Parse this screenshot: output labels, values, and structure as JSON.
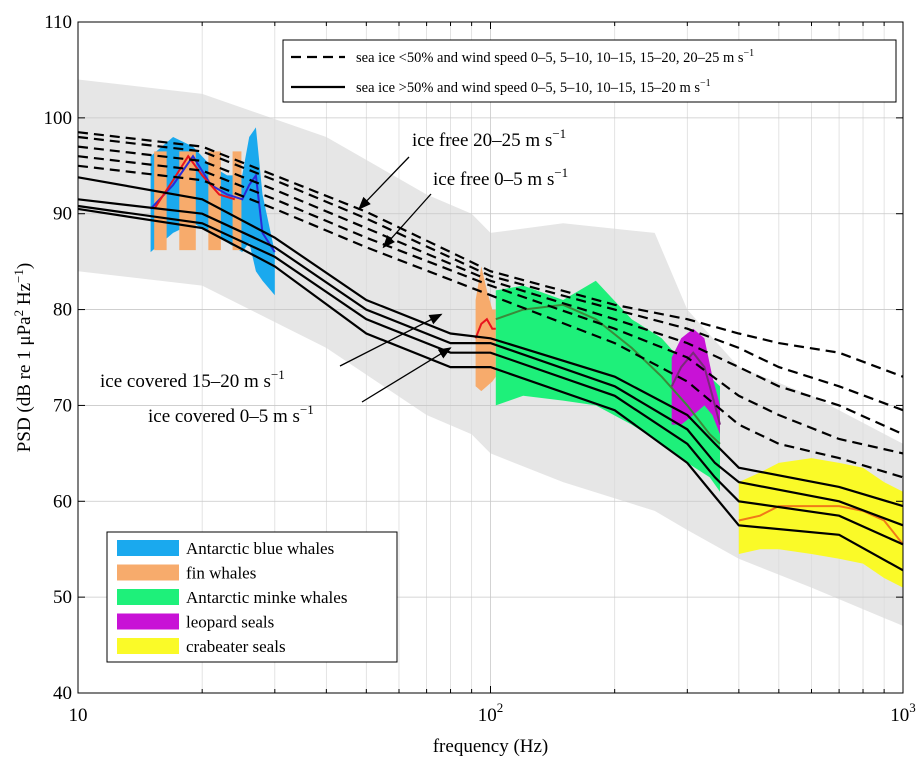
{
  "chart_data": {
    "type": "line",
    "xscale": "log",
    "xlim": [
      10,
      1000
    ],
    "ylim": [
      40,
      110
    ],
    "grid": true,
    "xlabel": "frequency (Hz)",
    "ylabel": {
      "a": "PSD (dB re 1 μPa",
      "sup1": "2",
      "b": " Hz",
      "sup2": "−1",
      "c": ")"
    },
    "xticks": [
      {
        "value": 10,
        "base": "10",
        "exp": ""
      },
      {
        "value": 100,
        "base": "10",
        "exp": "2"
      },
      {
        "value": 1000,
        "base": "10",
        "exp": "3"
      }
    ],
    "yticks": [
      "40",
      "50",
      "60",
      "70",
      "80",
      "90",
      "100",
      "110"
    ],
    "legend_top": {
      "position": "top-right",
      "entries": [
        {
          "style": "dashed",
          "label": "sea ice <50% and wind speed 0–5, 5–10, 10–15, 15–20, 20–25 m s",
          "sup": "−1"
        },
        {
          "style": "solid",
          "label": "sea ice >50% and wind speed 0–5, 5–10, 10–15, 15–20 m s",
          "sup": "−1"
        }
      ]
    },
    "legend_bottom": {
      "position": "bottom-left",
      "entries": [
        {
          "label": "Antarctic blue whales",
          "color": "#1aa9ee"
        },
        {
          "label": "fin whales",
          "color": "#f7ab6c"
        },
        {
          "label": "Antarctic minke whales",
          "color": "#1ef07a"
        },
        {
          "label": "leopard seals",
          "color": "#c812d6"
        },
        {
          "label": "crabeater seals",
          "color": "#fafa28"
        }
      ]
    },
    "annotations": [
      {
        "text": "ice free 20–25 m s",
        "sup": "−1",
        "points_to": [
          48,
          90.5
        ]
      },
      {
        "text": "ice free 0–5 m s",
        "sup": "−1",
        "points_to": [
          55,
          86.5
        ]
      },
      {
        "text": "ice covered 15–20 m s",
        "sup": "−1",
        "points_to": [
          76,
          79.5
        ]
      },
      {
        "text": "ice covered 0–5 m s",
        "sup": "−1",
        "points_to": [
          80,
          76
        ]
      }
    ],
    "background_range": {
      "color": "#e6e6e6",
      "x": [
        10,
        20,
        40,
        70,
        90,
        100,
        150,
        250,
        300,
        400,
        600,
        1000
      ],
      "upper": [
        104,
        102.5,
        98,
        92,
        90,
        88,
        89,
        88,
        80,
        74,
        71,
        66
      ],
      "lower": [
        84,
        82.5,
        76,
        69,
        67,
        65,
        62,
        59,
        57,
        54,
        51,
        47
      ]
    },
    "series": [
      {
        "style": "dashed",
        "x": [
          10,
          20,
          30,
          50,
          100,
          200,
          300,
          400,
          500,
          700,
          1000
        ],
        "y": [
          98.5,
          97,
          94,
          90.2,
          84,
          80.5,
          79,
          77.5,
          76.5,
          75.5,
          73
        ]
      },
      {
        "style": "dashed",
        "x": [
          10,
          20,
          30,
          50,
          100,
          200,
          300,
          400,
          500,
          700,
          1000
        ],
        "y": [
          98,
          96.5,
          93.5,
          89.5,
          83.5,
          80,
          78,
          76,
          74,
          72,
          69.5
        ]
      },
      {
        "style": "dashed",
        "x": [
          10,
          20,
          30,
          50,
          100,
          200,
          300,
          400,
          500,
          700,
          1000
        ],
        "y": [
          97,
          95.5,
          92.5,
          88.5,
          83,
          79,
          76.5,
          74,
          72,
          70,
          67
        ]
      },
      {
        "style": "dashed",
        "x": [
          10,
          20,
          30,
          50,
          100,
          200,
          300,
          400,
          500,
          700,
          1000
        ],
        "y": [
          96,
          94.5,
          91.5,
          87.5,
          82.5,
          78,
          75,
          71,
          69,
          66.5,
          65
        ]
      },
      {
        "style": "dashed",
        "x": [
          10,
          20,
          30,
          50,
          100,
          200,
          300,
          400,
          500,
          700,
          1000
        ],
        "y": [
          95,
          93.5,
          90.5,
          86.5,
          81.5,
          76.5,
          72.5,
          68,
          66,
          64.5,
          62.5
        ]
      },
      {
        "style": "solid",
        "x": [
          10,
          20,
          30,
          50,
          80,
          100,
          200,
          300,
          350,
          400,
          700,
          1000
        ],
        "y": [
          93.8,
          91.5,
          87.5,
          81,
          77.5,
          77,
          73,
          69,
          66,
          63.5,
          61.5,
          59.5
        ]
      },
      {
        "style": "solid",
        "x": [
          10,
          20,
          30,
          50,
          80,
          100,
          200,
          300,
          350,
          400,
          700,
          1000
        ],
        "y": [
          91.5,
          90,
          86.5,
          80,
          76.5,
          76.5,
          72,
          67.5,
          64,
          62,
          60,
          57.5
        ]
      },
      {
        "style": "solid",
        "x": [
          10,
          20,
          30,
          50,
          80,
          100,
          200,
          300,
          350,
          400,
          700,
          1000
        ],
        "y": [
          90.8,
          89,
          85.5,
          79,
          75.5,
          75.5,
          71,
          66,
          62.5,
          60,
          58.5,
          55.5
        ]
      },
      {
        "style": "solid",
        "x": [
          10,
          20,
          30,
          50,
          80,
          100,
          200,
          300,
          350,
          400,
          700,
          1000
        ],
        "y": [
          90.5,
          88.5,
          84.5,
          77.5,
          74,
          74,
          69.5,
          64,
          60.5,
          57.5,
          56.5,
          52.8
        ]
      }
    ],
    "species": [
      {
        "name": "Antarctic blue whales",
        "color": "#1aa9ee",
        "x": [
          15,
          17,
          19,
          21,
          23,
          25,
          26,
          27,
          28,
          30
        ],
        "upper": [
          96,
          98,
          97,
          95,
          94,
          94,
          98,
          99,
          92,
          86
        ],
        "lower": [
          86,
          88,
          89,
          88,
          87,
          86,
          87,
          84,
          83,
          81.5
        ],
        "mean_color": "#2a2ad8",
        "mean": [
          90.5,
          93,
          96,
          93,
          92,
          91.5,
          93,
          94,
          88,
          86
        ]
      },
      {
        "name": "fin whales",
        "stripes": [
          [
            15.3,
            16.4
          ],
          [
            17.6,
            19.3
          ],
          [
            20.7,
            22.2
          ],
          [
            23.7,
            24.9
          ]
        ],
        "color": "#f7ab6c",
        "x": [
          92,
          95,
          98,
          101,
          103
        ],
        "upper": [
          81,
          84.5,
          82,
          80,
          80
        ],
        "lower": [
          72,
          71.5,
          72,
          72.5,
          73
        ],
        "mean_color": "#e8141e",
        "mean": [
          77,
          78.5,
          79,
          78,
          78
        ],
        "mean_extra": {
          "x": [
            15.3,
            17,
            18.5,
            20,
            22,
            24
          ],
          "y": [
            90.5,
            93.5,
            96,
            94,
            92,
            91.5
          ]
        }
      },
      {
        "name": "Antarctic minke whales",
        "color": "#1ef07a",
        "x": [
          103,
          120,
          150,
          180,
          220,
          260,
          300,
          340,
          360
        ],
        "upper": [
          82,
          82.5,
          81,
          83,
          79,
          77,
          74,
          73,
          72
        ],
        "lower": [
          70,
          71,
          70.5,
          70,
          68,
          66,
          64,
          62.5,
          61
        ],
        "mean_color": "#3a8a3a",
        "mean": [
          79,
          80,
          80.5,
          79,
          76,
          73,
          70,
          67,
          66
        ]
      },
      {
        "name": "leopard seals",
        "color": "#c812d6",
        "x": [
          275,
          290,
          310,
          330,
          345,
          360
        ],
        "upper": [
          75,
          77,
          78,
          77,
          73,
          70
        ],
        "lower": [
          68,
          68,
          69,
          70,
          69,
          67
        ],
        "mean_color": "#7a2a7a",
        "mean": [
          72,
          74,
          75.5,
          74,
          71,
          68
        ]
      },
      {
        "name": "crabeater seals",
        "color": "#fafa28",
        "x": [
          400,
          450,
          500,
          600,
          700,
          800,
          900,
          1000
        ],
        "upper": [
          62,
          63,
          64,
          64.5,
          64,
          63.5,
          62,
          61
        ],
        "lower": [
          54.5,
          55,
          55,
          54.5,
          54,
          53.5,
          52,
          51
        ],
        "mean_color": "#f07a18",
        "mean": [
          58,
          58.5,
          59.5,
          59.5,
          59.5,
          59,
          58,
          55.5
        ]
      }
    ]
  }
}
